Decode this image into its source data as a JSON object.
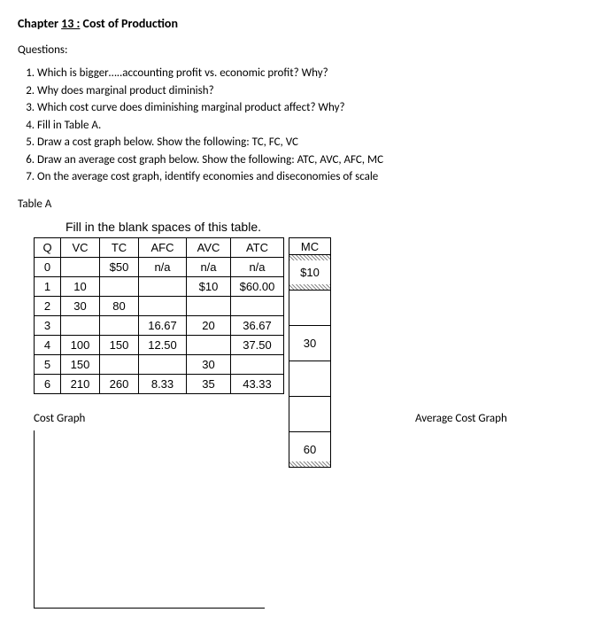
{
  "chapter": {
    "prefix": "Chapter ",
    "num": "13 :",
    "title": " Cost of Production"
  },
  "questions_label": "Questions:",
  "questions": [
    "Which is bigger…..accounting profit vs. economic profit?  Why?",
    "Why does marginal product diminish?",
    "Which cost curve does diminishing marginal product affect? Why?",
    "Fill in Table A.",
    "Draw a cost graph below. Show the following: TC, FC, VC",
    "Draw an average cost graph below. Show the following: ATC, AVC, AFC, MC",
    "On the average cost graph, identify economies and diseconomies of scale"
  ],
  "table_label": "Table A",
  "fill_caption": "Fill in the blank spaces of this table.",
  "headers": {
    "q": "Q",
    "vc": "VC",
    "tc": "TC",
    "afc": "AFC",
    "avc": "AVC",
    "atc": "ATC",
    "mc": "MC"
  },
  "rows": [
    {
      "q": "0",
      "vc": "",
      "tc": "$50",
      "afc": "n/a",
      "avc": "n/a",
      "atc": "n/a"
    },
    {
      "q": "1",
      "vc": "10",
      "tc": "",
      "afc": "",
      "avc": "$10",
      "atc": "$60.00"
    },
    {
      "q": "2",
      "vc": "30",
      "tc": "80",
      "afc": "",
      "avc": "",
      "atc": ""
    },
    {
      "q": "3",
      "vc": "",
      "tc": "",
      "afc": "16.67",
      "avc": "20",
      "atc": "36.67"
    },
    {
      "q": "4",
      "vc": "100",
      "tc": "150",
      "afc": "12.50",
      "avc": "",
      "atc": "37.50"
    },
    {
      "q": "5",
      "vc": "150",
      "tc": "",
      "afc": "",
      "avc": "30",
      "atc": ""
    },
    {
      "q": "6",
      "vc": "210",
      "tc": "260",
      "afc": "8.33",
      "avc": "35",
      "atc": "43.33"
    }
  ],
  "mc_values": [
    "$10",
    "",
    "30",
    "",
    "",
    "60"
  ],
  "graph_left": "Cost Graph",
  "graph_right": "Average Cost Graph"
}
